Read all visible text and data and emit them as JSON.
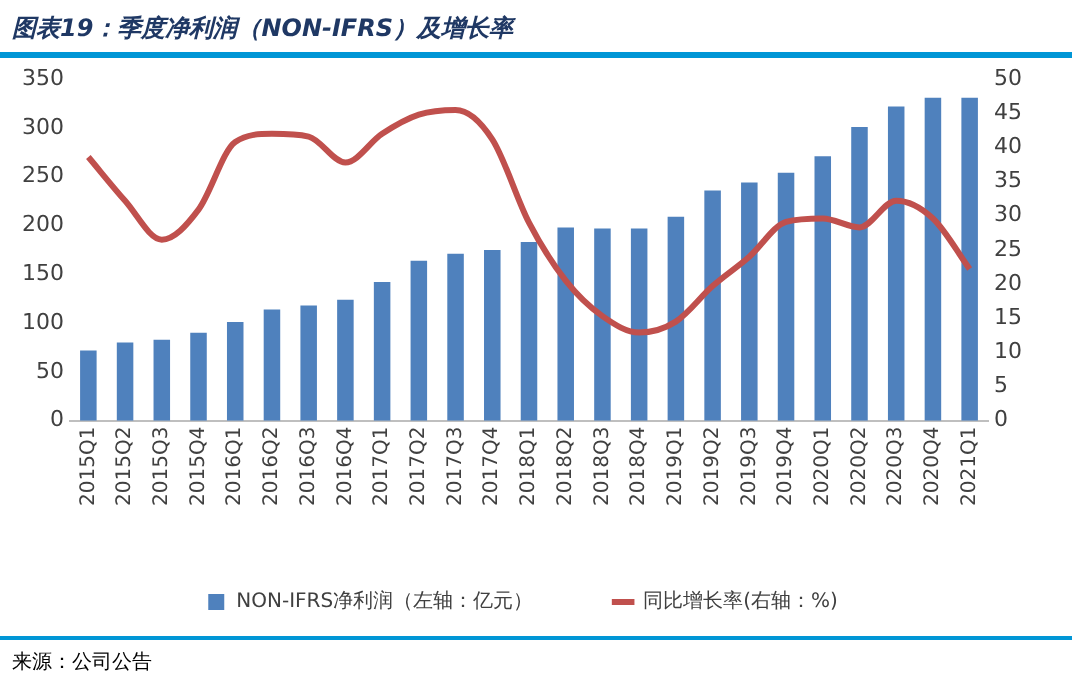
{
  "chart_data": {
    "type": "bar",
    "title": "图表19：季度净利润（NON-IFRS）及增长率",
    "categories": [
      "2015Q1",
      "2015Q2",
      "2015Q3",
      "2015Q4",
      "2016Q1",
      "2016Q2",
      "2016Q3",
      "2016Q4",
      "2017Q1",
      "2017Q2",
      "2017Q3",
      "2017Q4",
      "2018Q1",
      "2018Q2",
      "2018Q3",
      "2018Q4",
      "2019Q1",
      "2019Q2",
      "2019Q3",
      "2019Q4",
      "2020Q1",
      "2020Q2",
      "2020Q3",
      "2020Q4",
      "2021Q1"
    ],
    "series": [
      {
        "name": "NON-IFRS净利润（左轴：亿元）",
        "color": "#4f81bd",
        "values": [
          72,
          80,
          83,
          90,
          101,
          114,
          118,
          124,
          142,
          164,
          171,
          175,
          183,
          198,
          197,
          197,
          209,
          236,
          244,
          254,
          271,
          301,
          322,
          331,
          331
        ]
      },
      {
        "name": "同比增长率(右轴：%)",
        "type": "line",
        "axis": "y2",
        "color": "#c0504d",
        "values": [
          38.6,
          32.2,
          26.5,
          30.9,
          40.8,
          42,
          41.6,
          37.8,
          42,
          44.8,
          45.5,
          41.2,
          29,
          20.5,
          15.3,
          12.9,
          14.5,
          19.7,
          24,
          29.1,
          29.6,
          28.3,
          32.2,
          29.6,
          22.2
        ]
      }
    ],
    "ylim": [
      0,
      350
    ],
    "yticks": [
      0,
      50,
      100,
      150,
      200,
      250,
      300,
      350
    ],
    "y2lim": [
      0,
      50
    ],
    "y2ticks": [
      0,
      5,
      10,
      15,
      20,
      25,
      30,
      35,
      40,
      45,
      50
    ],
    "grid": false,
    "legend": "bottom",
    "marker": "none",
    "line_style": "solid",
    "annotations": [
      "来源：公司公告"
    ]
  }
}
